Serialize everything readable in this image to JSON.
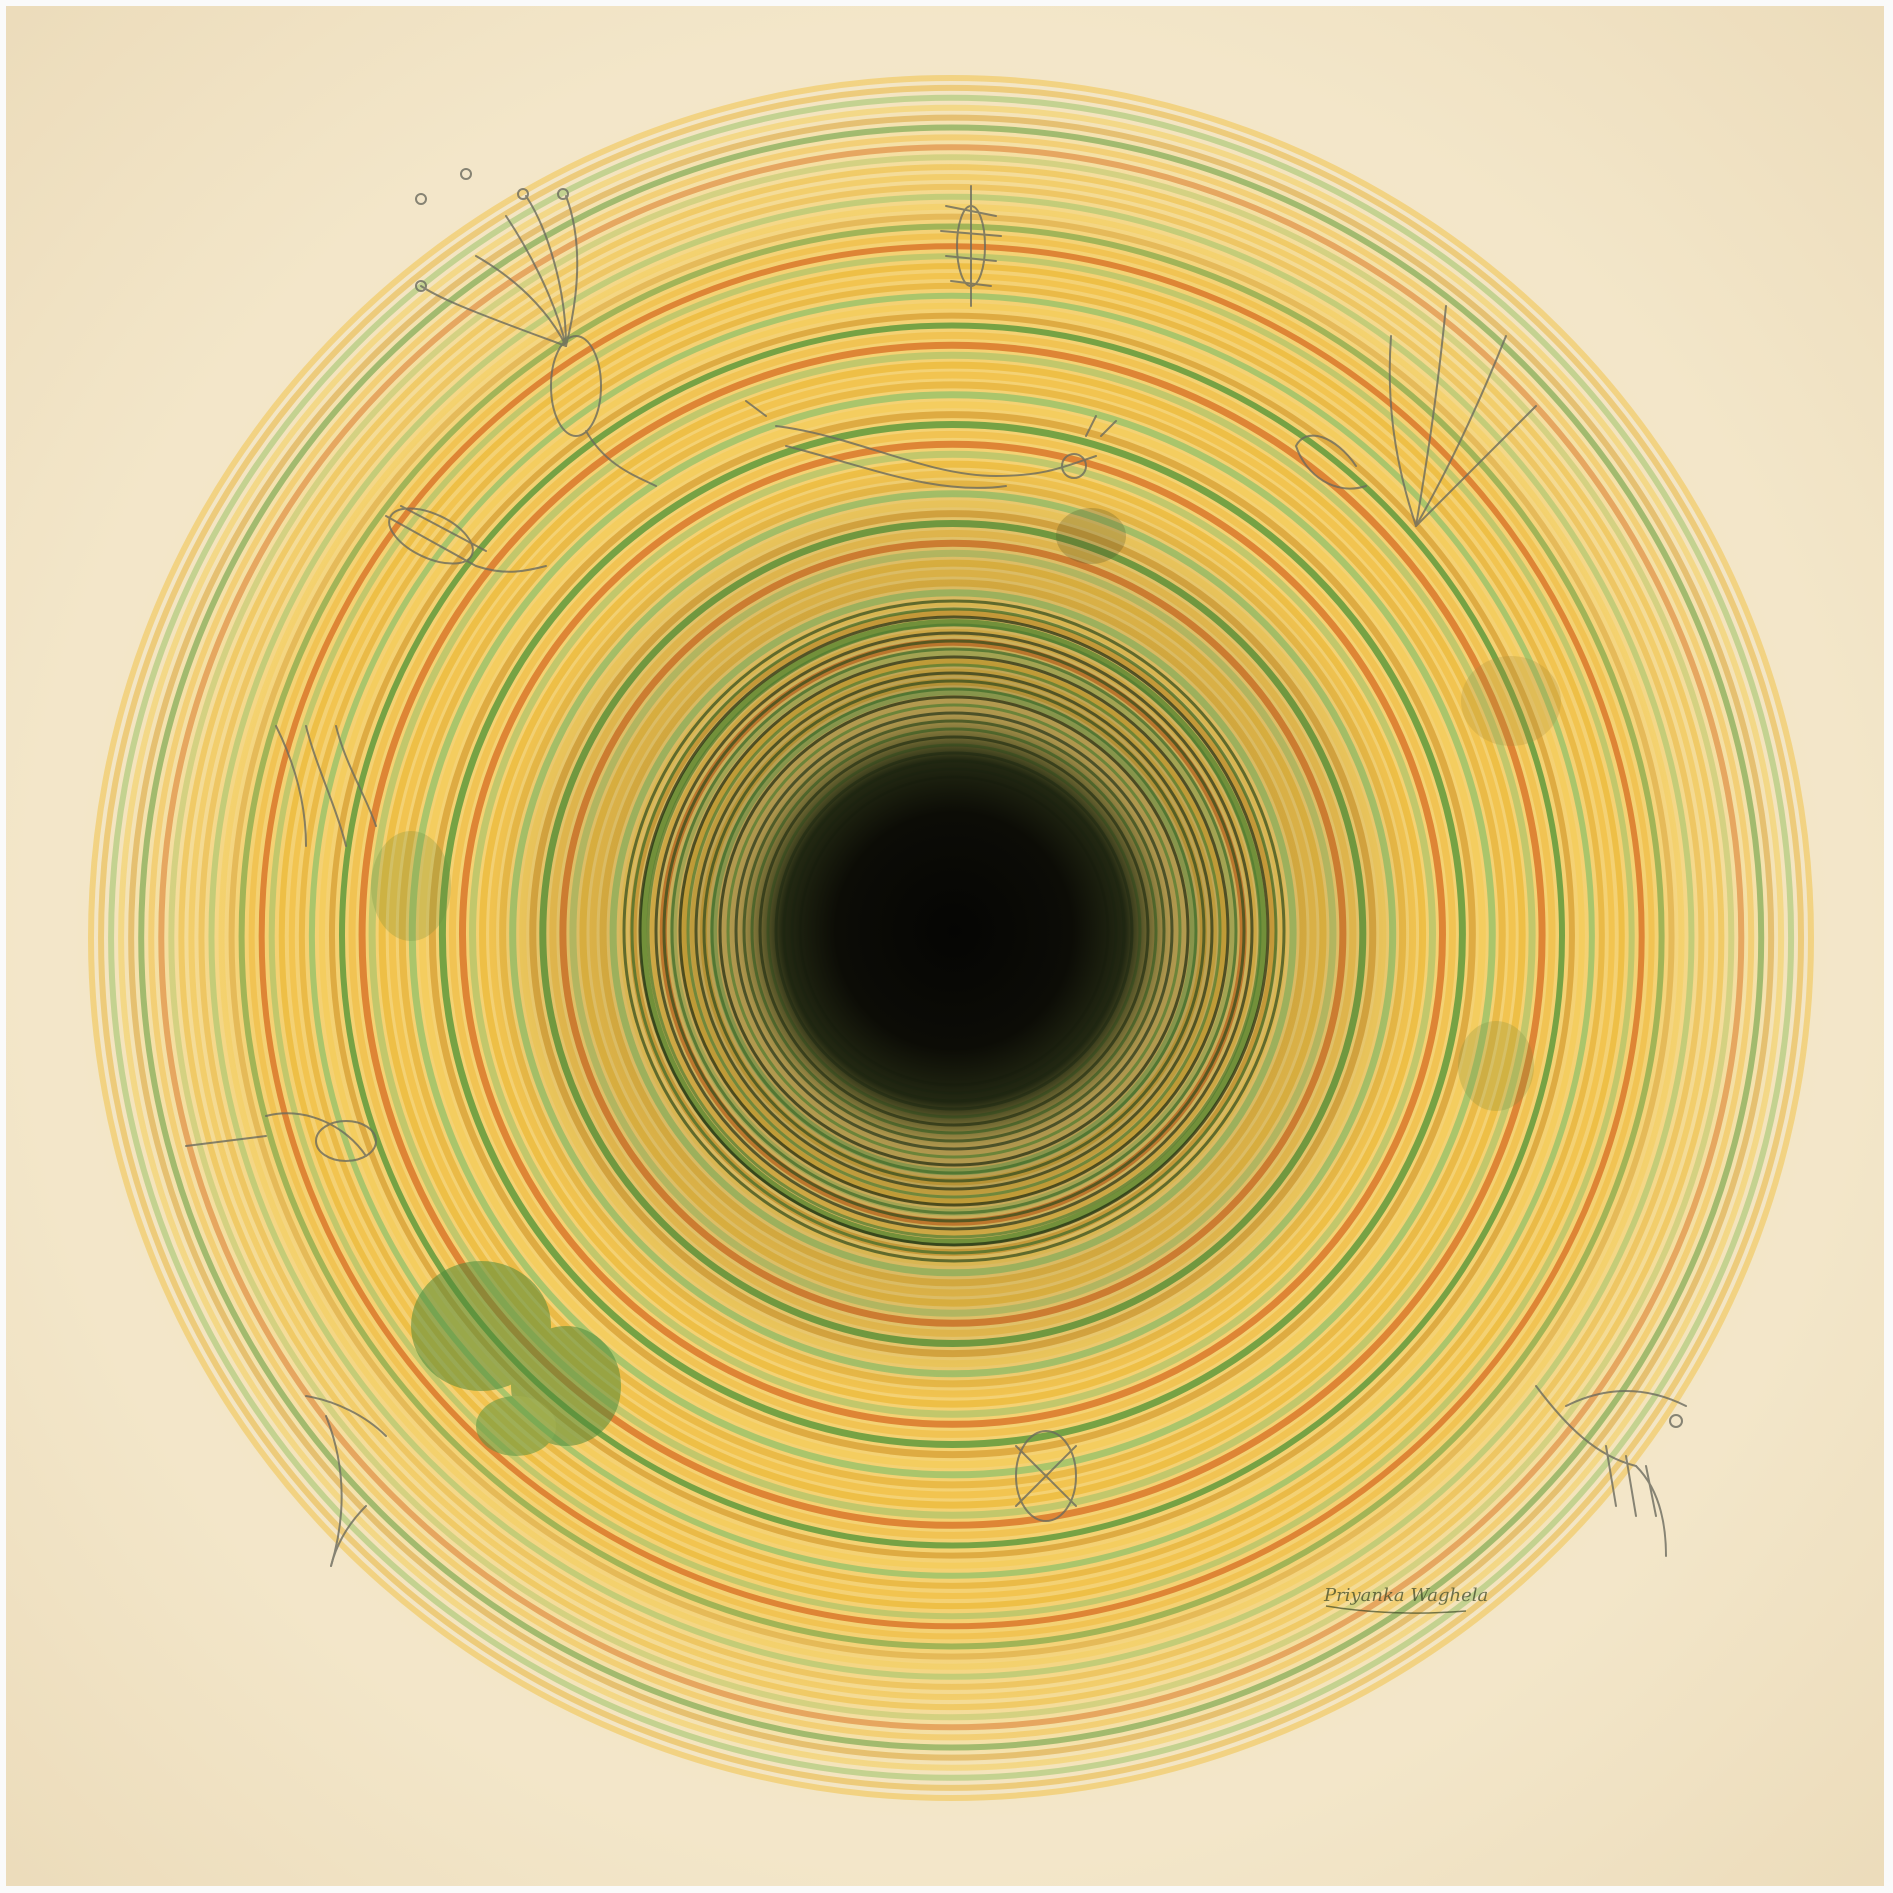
{
  "artwork": {
    "description_free": true,
    "signature_text": "Priyanka Waghela",
    "colors": {
      "paper": "#f3e6c9",
      "paper_edge": "#e9d5ae",
      "halo": "#f6d98a",
      "yellow": "#f1c24a",
      "ochre": "#d9a43a",
      "orange": "#d9782a",
      "green": "#5f9a3c",
      "light_green": "#9cc36a",
      "center": "#0b0b06"
    },
    "ring_palette": [
      "#f1c24a",
      "#e8b640",
      "#9cc36a",
      "#f3cd5c",
      "#d9a43a",
      "#5f9a3c",
      "#f0c14e",
      "#d9782a",
      "#b9c66a",
      "#ecbc3e"
    ],
    "motifs": [
      "plankton-sketch-icon",
      "hydra-sketch-icon",
      "worm-sketch-icon",
      "diatom-sketch-icon",
      "shrimp-sketch-icon",
      "algae-blot-icon"
    ]
  }
}
